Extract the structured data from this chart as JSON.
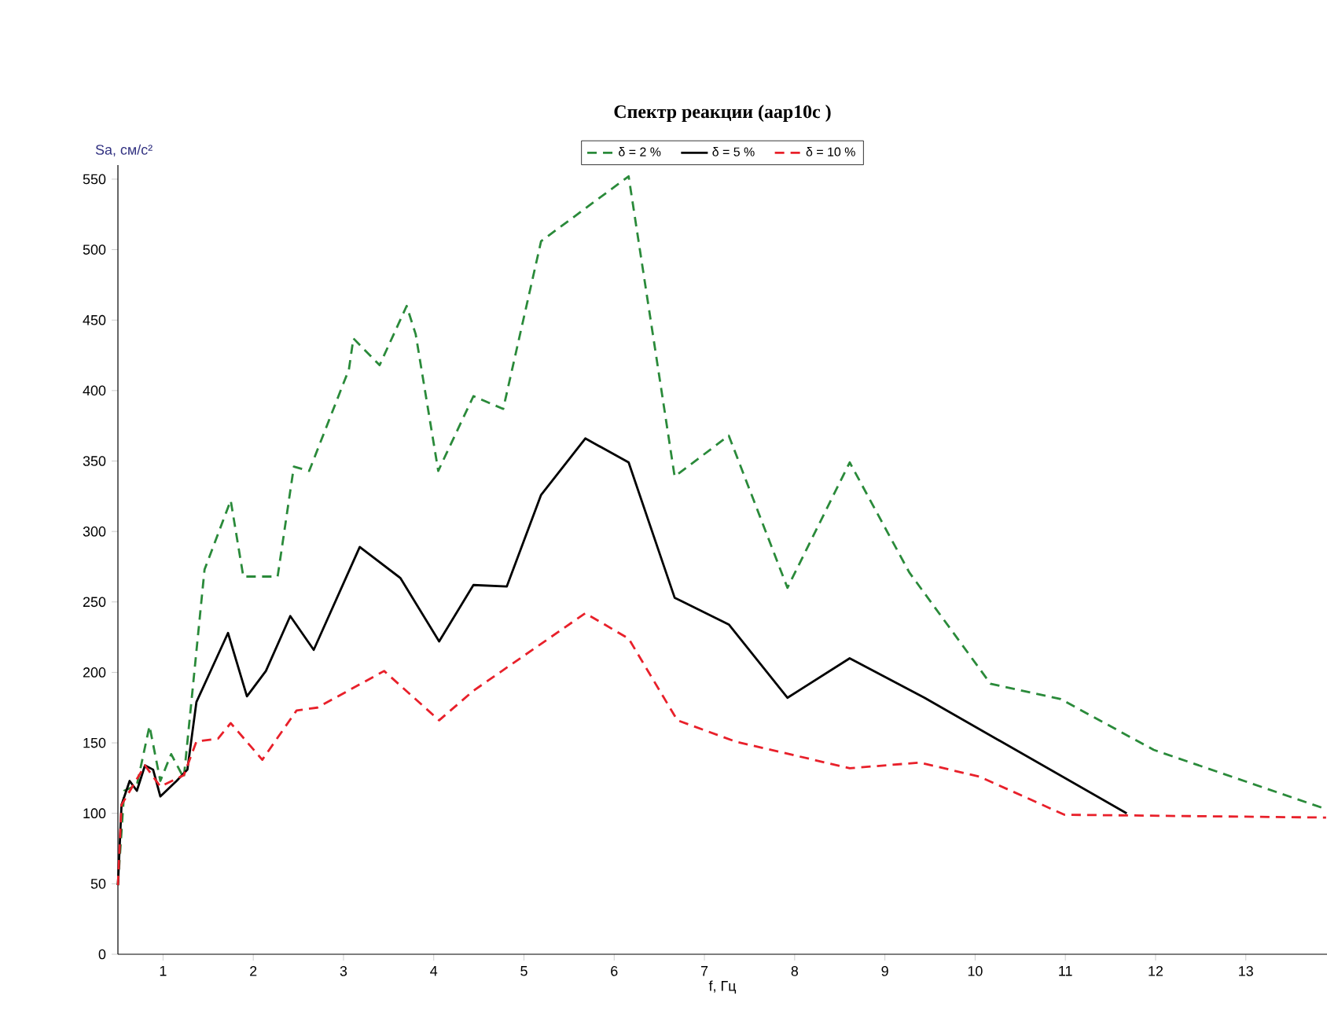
{
  "chart_data": {
    "type": "line",
    "title": "Спектр реакции (аар10с )",
    "xlabel": "f, Гц",
    "ylabel": "Sa, см/с²",
    "xlim": [
      0.5,
      13.9
    ],
    "xticks": [
      1,
      2,
      3,
      4,
      5,
      6,
      7,
      8,
      9,
      10,
      11,
      12,
      13
    ],
    "ylim": [
      0,
      560
    ],
    "yticks": [
      0,
      50,
      100,
      150,
      200,
      250,
      300,
      350,
      400,
      450,
      500,
      550
    ],
    "legend": "top",
    "marker": "none",
    "series": [
      {
        "name": "δ = 2 %",
        "color": "#2a8a3a",
        "line_style": "dashed",
        "x": [
          0.5,
          0.57,
          0.71,
          0.85,
          0.97,
          1.09,
          1.23,
          1.46,
          1.75,
          1.89,
          2.27,
          2.45,
          2.62,
          3.06,
          3.11,
          3.4,
          3.7,
          3.8,
          4.05,
          4.44,
          4.77,
          5.19,
          6.16,
          6.67,
          7.27,
          7.92,
          8.61,
          9.27,
          10.17,
          10.95,
          11.98,
          13.89
        ],
        "values": [
          49,
          116,
          120,
          162,
          123,
          142,
          125,
          273,
          322,
          268,
          268,
          346,
          343,
          415,
          437,
          418,
          460,
          440,
          343,
          396,
          387,
          506,
          552,
          339,
          368,
          260,
          349,
          271,
          192,
          181,
          145,
          103
        ]
      },
      {
        "name": "δ = 5 %",
        "color": "#000000",
        "line_style": "solid",
        "x": [
          0.5,
          0.54,
          0.63,
          0.71,
          0.8,
          0.89,
          0.97,
          1.15,
          1.27,
          1.37,
          1.72,
          1.93,
          2.14,
          2.41,
          2.67,
          3.18,
          3.63,
          4.06,
          4.44,
          4.81,
          5.19,
          5.68,
          6.16,
          6.67,
          7.27,
          7.92,
          8.61,
          9.44,
          11.68
        ],
        "values": [
          49,
          106,
          123,
          116,
          134,
          131,
          112,
          123,
          131,
          179,
          228,
          183,
          201,
          240,
          216,
          289,
          267,
          222,
          262,
          261,
          326,
          366,
          349,
          253,
          234,
          182,
          210,
          182,
          100
        ]
      },
      {
        "name": "δ = 10 %",
        "color": "#e8202a",
        "line_style": "dashed",
        "x": [
          0.5,
          0.54,
          0.8,
          0.97,
          1.23,
          1.37,
          1.61,
          1.75,
          2.1,
          2.48,
          2.71,
          3.45,
          4.06,
          4.44,
          5.68,
          6.16,
          6.7,
          7.34,
          8.61,
          9.39,
          10.05,
          10.99,
          13.89
        ],
        "values": [
          49,
          106,
          134,
          119,
          127,
          151,
          153,
          164,
          138,
          173,
          175,
          201,
          166,
          187,
          242,
          224,
          166,
          151,
          132,
          136,
          126,
          99,
          97
        ]
      }
    ]
  }
}
